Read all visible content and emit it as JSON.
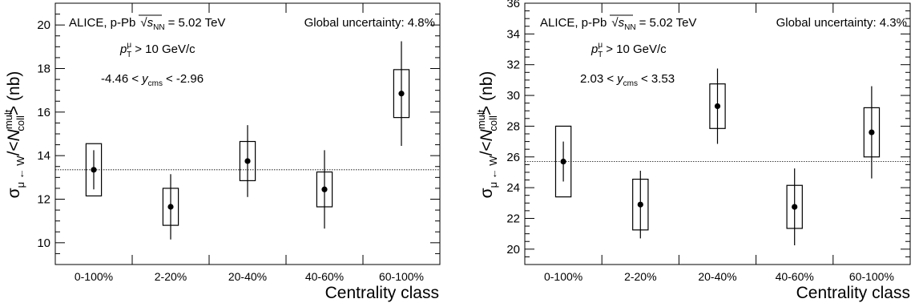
{
  "chart_data": [
    {
      "type": "scatter",
      "categories": [
        "0-100%",
        "2-20%",
        "20-40%",
        "40-60%",
        "60-100%"
      ],
      "values": [
        13.35,
        11.65,
        13.75,
        12.45,
        16.85
      ],
      "stat_err": [
        0.9,
        1.5,
        1.65,
        1.8,
        2.4
      ],
      "syst_err": [
        1.2,
        0.85,
        0.9,
        0.8,
        1.1
      ],
      "reference_line": 13.35,
      "ylim": [
        9,
        21
      ],
      "yticks": [
        10,
        12,
        14,
        16,
        18,
        20
      ],
      "xlabel": "Centrality class",
      "ylabel": "σ_{μ←W}/<N_coll^mult> (nb)",
      "annotations": {
        "system": "ALICE, p-Pb",
        "energy": "= 5.02 TeV",
        "global": "Global uncertainty: 4.8%",
        "pt_cut": "> 10 GeV/c",
        "y_low": "-4.46 <",
        "y_high": "< -2.96"
      }
    },
    {
      "type": "scatter",
      "categories": [
        "0-100%",
        "2-20%",
        "20-40%",
        "40-60%",
        "60-100%"
      ],
      "values": [
        25.7,
        22.9,
        29.3,
        22.75,
        27.6
      ],
      "stat_err": [
        1.3,
        2.2,
        2.45,
        2.5,
        3.0
      ],
      "syst_err": [
        2.3,
        1.65,
        1.45,
        1.4,
        1.6
      ],
      "reference_line": 25.7,
      "ylim": [
        19,
        36
      ],
      "yticks": [
        20,
        22,
        24,
        26,
        28,
        30,
        32,
        34,
        36
      ],
      "xlabel": "Centrality class",
      "ylabel": "σ_{μ←W}/<N_coll^mult> (nb)",
      "annotations": {
        "system": "ALICE, p-Pb",
        "energy": "= 5.02 TeV",
        "global": "Global uncertainty: 4.3%",
        "pt_cut": "> 10 GeV/c",
        "y_low": "2.03 <",
        "y_high": "< 3.53"
      }
    }
  ]
}
